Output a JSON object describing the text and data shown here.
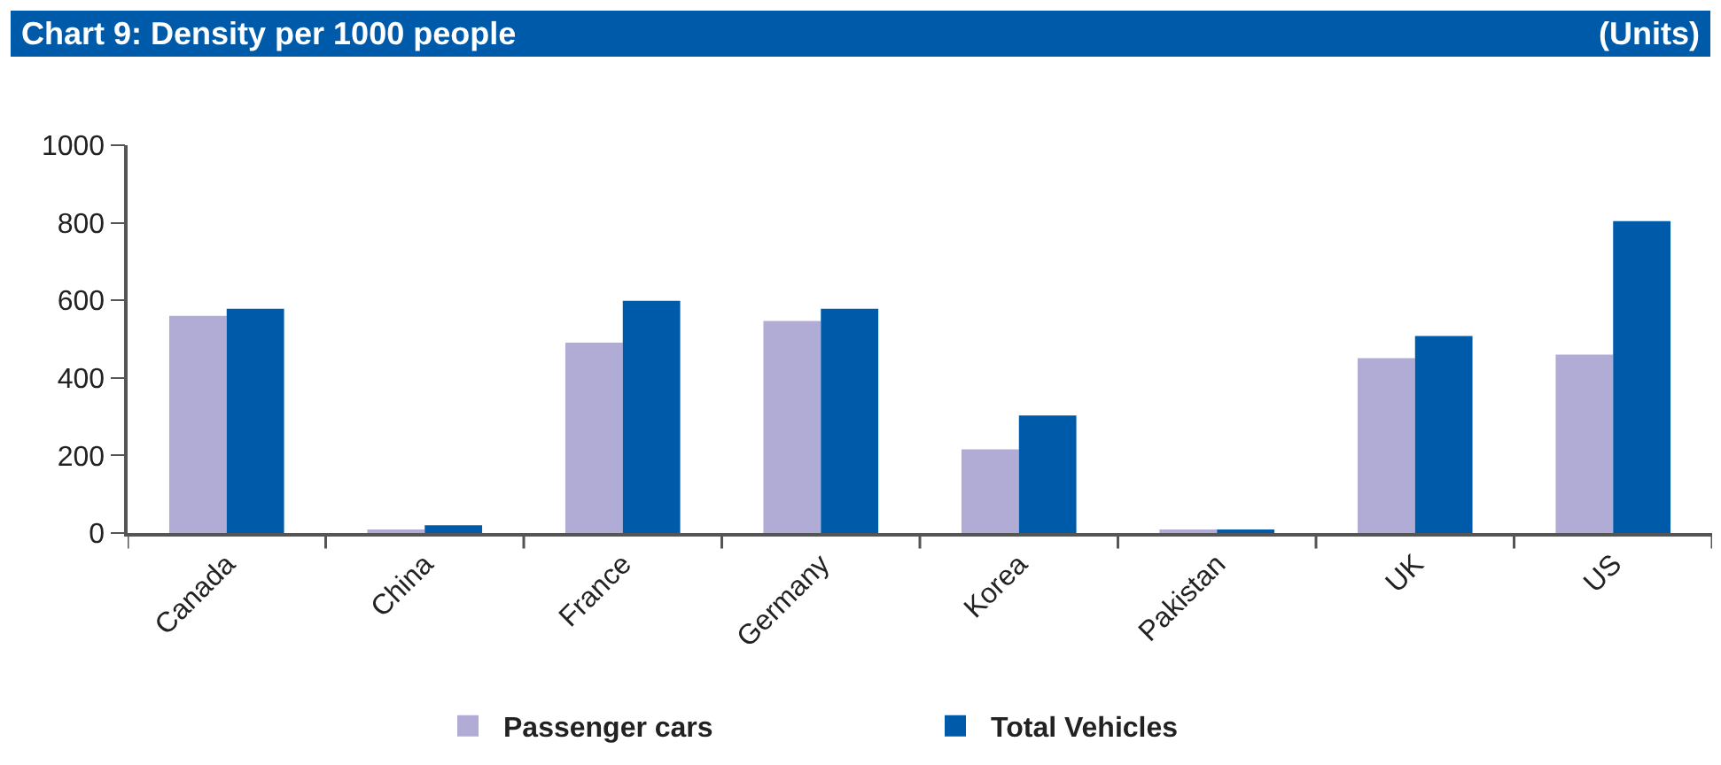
{
  "chart_data": {
    "type": "bar",
    "title": "Chart 9: Density per 1000 people",
    "annotations": [
      "(Units)"
    ],
    "categories": [
      "Canada",
      "China",
      "France",
      "Germany",
      "Korea",
      "Pakistan",
      "UK",
      "US"
    ],
    "series": [
      {
        "name": "Passenger cars",
        "color": "#b0acd5",
        "values": [
          560,
          7,
          491,
          547,
          216,
          7,
          451,
          460
        ]
      },
      {
        "name": "Total Vehicles",
        "color": "#005aaa",
        "values": [
          578,
          20,
          599,
          578,
          303,
          8,
          508,
          804
        ]
      }
    ],
    "ylim": [
      0,
      1000
    ],
    "yticks": [
      0,
      200,
      400,
      600,
      800,
      1000
    ],
    "grid": false,
    "legend": "bottom"
  }
}
